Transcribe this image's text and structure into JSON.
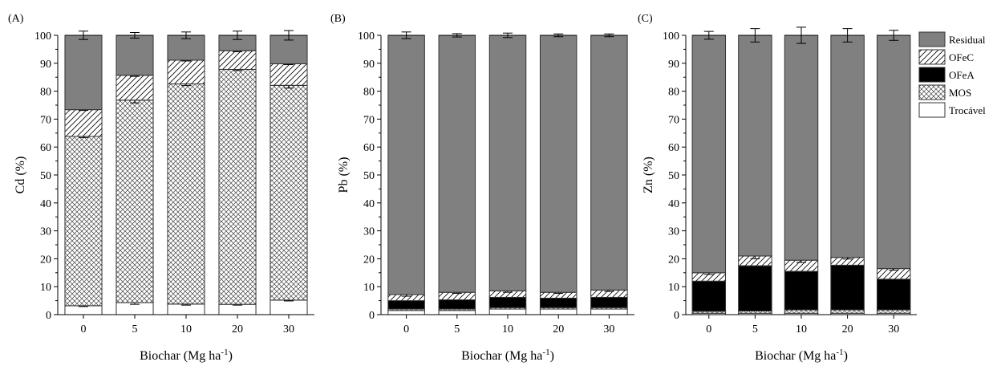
{
  "x_axis_label": "Biochar (Mg ha",
  "x_axis_label_sup": "-1",
  "x_axis_label_end": ")",
  "legend": [
    {
      "name": "Residual",
      "pattern": "residual"
    },
    {
      "name": "OFeC",
      "pattern": "ofec"
    },
    {
      "name": "OFeA",
      "pattern": "ofea"
    },
    {
      "name": "MOS",
      "pattern": "mos"
    },
    {
      "name": "Trocável",
      "pattern": "trocavel"
    }
  ],
  "colors": {
    "residual": "#808080",
    "ofea": "#000000",
    "trocavel": "#ffffff",
    "hatch": "#000000"
  },
  "chart_data": [
    {
      "panel": "(A)",
      "type": "bar",
      "stacked": true,
      "ylabel": "Cd (%)",
      "ylim": [
        0,
        100
      ],
      "yticks": [
        0,
        10,
        20,
        30,
        40,
        50,
        60,
        70,
        80,
        90,
        100
      ],
      "categories": [
        "0",
        "5",
        "10",
        "20",
        "30"
      ],
      "series": [
        {
          "name": "Trocável",
          "values": [
            3.2,
            4.3,
            3.8,
            3.7,
            5.2
          ],
          "errors": [
            0.3,
            0.6,
            0.4,
            0.3,
            0.3
          ]
        },
        {
          "name": "MOS",
          "values": [
            60.6,
            72.5,
            78.8,
            84.1,
            76.9
          ],
          "errors": [
            0.4,
            1.0,
            0.6,
            0.4,
            1.0
          ]
        },
        {
          "name": "OFeA",
          "values": [
            0,
            0,
            0,
            0,
            0
          ],
          "errors": [
            0,
            0,
            0,
            0,
            0
          ]
        },
        {
          "name": "OFeC",
          "values": [
            9.6,
            8.9,
            8.5,
            6.7,
            7.7
          ],
          "errors": [
            0.3,
            0.4,
            0.3,
            0.4,
            0.3
          ]
        },
        {
          "name": "Residual",
          "values": [
            26.6,
            14.3,
            8.9,
            5.5,
            10.2
          ],
          "errors": [
            1.5,
            1.0,
            1.2,
            1.5,
            1.7
          ]
        }
      ]
    },
    {
      "panel": "(B)",
      "type": "bar",
      "stacked": true,
      "ylabel": "Pb (%)",
      "ylim": [
        0,
        100
      ],
      "yticks": [
        0,
        10,
        20,
        30,
        40,
        50,
        60,
        70,
        80,
        90,
        100
      ],
      "categories": [
        "0",
        "5",
        "10",
        "20",
        "30"
      ],
      "series": [
        {
          "name": "Trocável",
          "values": [
            1.5,
            1.5,
            2.0,
            2.0,
            2.0
          ],
          "errors": [
            0,
            0,
            0,
            0,
            0
          ]
        },
        {
          "name": "MOS",
          "values": [
            0.5,
            0.5,
            0.5,
            0.5,
            0.5
          ],
          "errors": [
            0,
            0,
            0,
            0,
            0
          ]
        },
        {
          "name": "OFeA",
          "values": [
            3.0,
            3.3,
            3.7,
            3.4,
            3.7
          ],
          "errors": [
            0.6,
            0.6,
            0.6,
            0.6,
            0.6
          ]
        },
        {
          "name": "OFeC",
          "values": [
            2.2,
            2.7,
            2.3,
            2.1,
            2.6
          ],
          "errors": [
            0.6,
            0.4,
            0.5,
            0.4,
            0.5
          ]
        },
        {
          "name": "Residual",
          "values": [
            92.8,
            92.0,
            91.5,
            92.0,
            91.2
          ],
          "errors": [
            1.2,
            0.6,
            0.8,
            0.5,
            0.5
          ]
        }
      ]
    },
    {
      "panel": "(C)",
      "type": "bar",
      "stacked": true,
      "ylabel": "Zn (%)",
      "ylim": [
        0,
        100
      ],
      "yticks": [
        0,
        10,
        20,
        30,
        40,
        50,
        60,
        70,
        80,
        90,
        100
      ],
      "categories": [
        "0",
        "5",
        "10",
        "20",
        "30"
      ],
      "series": [
        {
          "name": "Trocável",
          "values": [
            0.5,
            0.5,
            0.5,
            0.5,
            0.5
          ],
          "errors": [
            0,
            0,
            0,
            0,
            0
          ]
        },
        {
          "name": "MOS",
          "values": [
            0.7,
            0.8,
            1.2,
            1.2,
            1.2
          ],
          "errors": [
            0,
            0,
            0,
            0,
            0
          ]
        },
        {
          "name": "OFeA",
          "values": [
            10.8,
            16.2,
            13.8,
            16.0,
            11.0
          ],
          "errors": [
            0,
            0,
            0,
            0,
            0
          ]
        },
        {
          "name": "OFeC",
          "values": [
            3.0,
            3.5,
            4.0,
            2.8,
            3.8
          ],
          "errors": [
            0.6,
            1.0,
            0.8,
            0.6,
            0.6
          ]
        },
        {
          "name": "Residual",
          "values": [
            85.0,
            79.0,
            80.5,
            79.5,
            83.5
          ],
          "errors": [
            1.4,
            2.4,
            2.9,
            2.4,
            1.8
          ]
        }
      ]
    }
  ]
}
